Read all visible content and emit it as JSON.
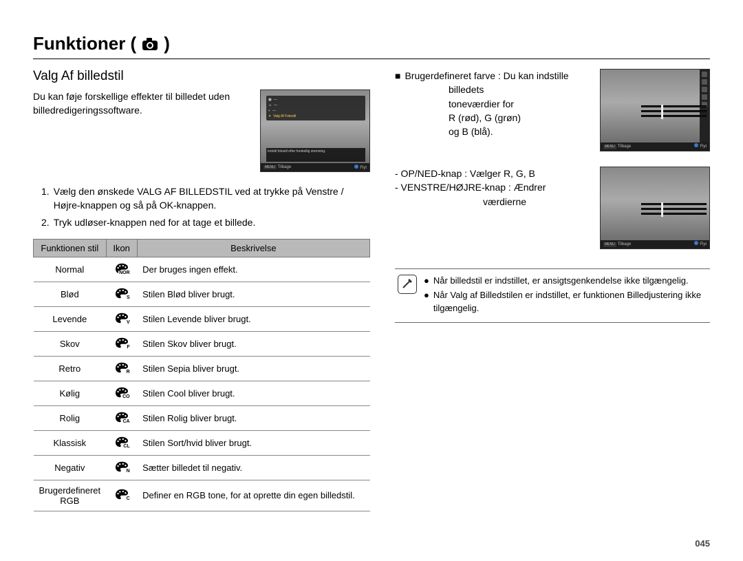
{
  "page_title_prefix": "Funktioner (",
  "page_title_suffix": ")",
  "section_title": "Valg Af billedstil",
  "intro_text": "Du kan føje forskellige effekter til billedet uden billedredigeringssoftware.",
  "screenshot1": {
    "menu_line_hl": "Valg Af Fotostil",
    "menu_sub": "Indstil fotostil efter forskellig stemning.",
    "btm_left_key": "MENU",
    "btm_left": "Tilbage",
    "btm_right": "Flyt"
  },
  "steps": {
    "n1": "1.",
    "s1": "Vælg den ønskede VALG AF BILLEDSTIL ved at trykke på Venstre / Højre-knappen og så på OK-knappen.",
    "n2": "2.",
    "s2": "Tryk udløser-knappen ned for at tage et billede."
  },
  "table": {
    "headers": {
      "style": "Funktionen stil",
      "icon": "Ikon",
      "desc": "Beskrivelse"
    },
    "rows": [
      {
        "style": "Normal",
        "icon_text": "NOR",
        "desc": "Der bruges ingen effekt."
      },
      {
        "style": "Blød",
        "icon_text": "S",
        "desc": "Stilen Blød bliver brugt."
      },
      {
        "style": "Levende",
        "icon_text": "V",
        "desc": "Stilen Levende bliver brugt."
      },
      {
        "style": "Skov",
        "icon_text": "F",
        "desc": "Stilen Skov bliver brugt."
      },
      {
        "style": "Retro",
        "icon_text": "R",
        "desc": "Stilen Sepia bliver brugt."
      },
      {
        "style": "Kølig",
        "icon_text": "CO",
        "desc": "Stilen Cool bliver brugt."
      },
      {
        "style": "Rolig",
        "icon_text": "CA",
        "desc": "Stilen Rolig bliver brugt."
      },
      {
        "style": "Klassisk",
        "icon_text": "CL",
        "desc": "Stilen Sort/hvid bliver brugt."
      },
      {
        "style": "Negativ",
        "icon_text": "N",
        "desc": "Sætter billedet til negativ."
      },
      {
        "style": "Brugerdefineret RGB",
        "icon_text": "C",
        "desc": "Definer en RGB tone, for at oprette din egen billedstil."
      }
    ]
  },
  "right": {
    "custom_label": "Brugerdefineret farve :",
    "custom_desc_l1": "Du kan indstille",
    "custom_desc_l2": "billedets",
    "custom_desc_l3": "toneværdier for",
    "custom_desc_l4": "R (rød), G (grøn)",
    "custom_desc_l5": "og B (blå).",
    "updown_l": "- OP/NED-knap : Vælger R, G, B",
    "leftright_l": "- VENSTRE/HØJRE-knap : Ændrer",
    "leftright_l2": "værdierne"
  },
  "screenshot2": {
    "btm_left_key": "MENU",
    "btm_left": "Tilbage",
    "btm_right": "Flyt"
  },
  "notes": {
    "n1": "Når billedstil er indstillet, er ansigtsgenkendelse ikke tilgængelig.",
    "n2": "Når Valg af Billedstilen er indstillet, er funktionen Billedjustering ikke tilgængelig."
  },
  "page_number": "045"
}
